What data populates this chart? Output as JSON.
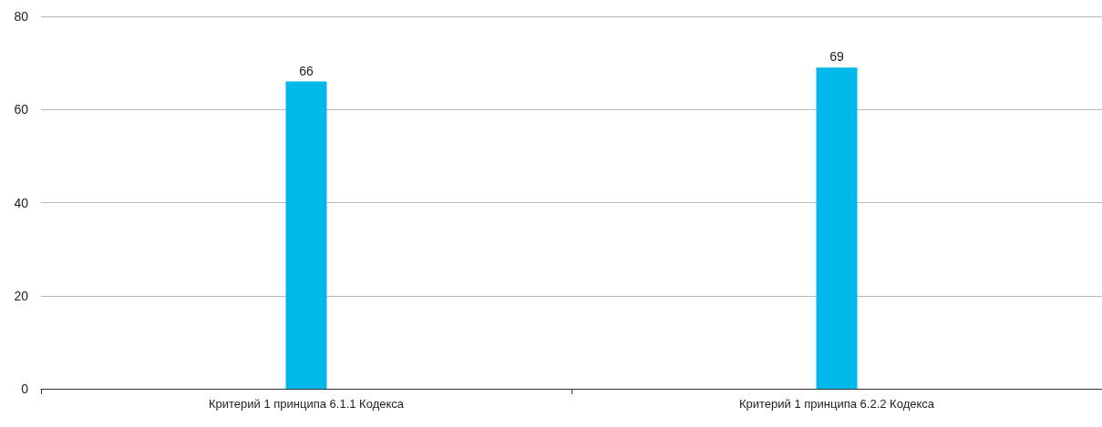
{
  "chart_data": {
    "type": "bar",
    "categories": [
      "Критерий 1 принципа 6.1.1 Кодекса",
      "Критерий 1 принципа 6.2.2 Кодекса"
    ],
    "values": [
      66,
      69
    ],
    "color": "#00b9eb",
    "ylim": [
      0,
      80
    ],
    "yticks": [
      0,
      20,
      40,
      60,
      80
    ],
    "grid": "y",
    "data_labels": true
  }
}
